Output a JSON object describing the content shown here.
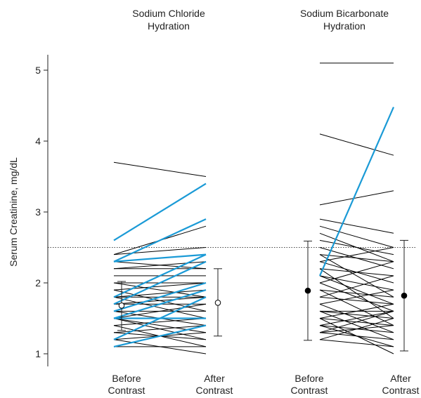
{
  "chart_data": {
    "type": "line",
    "ylabel": "Serum Creatinine, mg/dL",
    "ylim": [
      0.9,
      5.3
    ],
    "yticks": [
      "1",
      "2",
      "3",
      "4",
      "5"
    ],
    "yticks_values": [
      1,
      2,
      3,
      4,
      5
    ],
    "reference_line": 2.5,
    "group_titles": [
      [
        "Sodium Chloride",
        "Hydration"
      ],
      [
        "Sodium Bicarbonate",
        "Hydration"
      ]
    ],
    "category_labels": [
      [
        "Before",
        "Contrast"
      ],
      [
        "After",
        "Contrast"
      ],
      [
        "Before",
        "Contrast"
      ],
      [
        "After",
        "Contrast"
      ]
    ],
    "colors": {
      "line": "#000000",
      "highlight": "#1a9ad6",
      "reference": "#444444"
    },
    "summary": [
      {
        "mean": 1.68,
        "low": 1.33,
        "high": 2.02,
        "marker": "open"
      },
      {
        "mean": 1.72,
        "low": 1.25,
        "high": 2.2,
        "marker": "open"
      },
      {
        "mean": 1.89,
        "low": 1.19,
        "high": 2.59,
        "marker": "filled"
      },
      {
        "mean": 1.82,
        "low": 1.04,
        "high": 2.6,
        "marker": "filled"
      }
    ],
    "groups": [
      {
        "name": "Sodium Chloride Hydration",
        "pairs": [
          [
            3.7,
            3.5,
            0
          ],
          [
            2.6,
            3.4,
            1
          ],
          [
            2.3,
            2.9,
            1
          ],
          [
            2.4,
            2.8,
            0
          ],
          [
            2.4,
            2.5,
            0
          ],
          [
            2.3,
            2.4,
            1
          ],
          [
            2.2,
            2.3,
            0
          ],
          [
            1.8,
            2.4,
            1
          ],
          [
            2.2,
            2.2,
            0
          ],
          [
            2.1,
            2.1,
            0
          ],
          [
            2.0,
            2.0,
            0
          ],
          [
            1.9,
            2.0,
            0
          ],
          [
            2.0,
            1.8,
            0
          ],
          [
            1.8,
            1.9,
            0
          ],
          [
            1.7,
            1.8,
            0
          ],
          [
            1.7,
            1.7,
            0
          ],
          [
            1.6,
            1.6,
            0
          ],
          [
            1.5,
            1.7,
            0
          ],
          [
            1.8,
            1.5,
            0
          ],
          [
            1.9,
            1.6,
            0
          ],
          [
            1.4,
            1.5,
            0
          ],
          [
            1.3,
            1.4,
            0
          ],
          [
            1.5,
            1.3,
            0
          ],
          [
            1.2,
            1.3,
            0
          ],
          [
            1.3,
            1.2,
            0
          ],
          [
            1.4,
            1.1,
            0
          ],
          [
            1.2,
            1.0,
            0
          ],
          [
            1.6,
            1.4,
            0
          ],
          [
            1.5,
            1.2,
            0
          ],
          [
            1.1,
            1.1,
            0
          ],
          [
            1.7,
            2.3,
            1
          ],
          [
            1.6,
            2.0,
            1
          ],
          [
            1.5,
            1.9,
            1
          ],
          [
            1.2,
            1.8,
            1
          ],
          [
            1.1,
            1.4,
            1
          ],
          [
            1.5,
            1.5,
            1
          ],
          [
            2.3,
            2.2,
            0
          ],
          [
            1.8,
            1.8,
            0
          ]
        ]
      },
      {
        "name": "Sodium Bicarbonate Hydration",
        "pairs": [
          [
            5.1,
            5.1,
            0
          ],
          [
            4.1,
            3.8,
            0
          ],
          [
            3.1,
            3.3,
            0
          ],
          [
            2.9,
            2.7,
            0
          ],
          [
            2.8,
            2.5,
            0
          ],
          [
            2.7,
            2.3,
            0
          ],
          [
            2.6,
            2.4,
            0
          ],
          [
            2.5,
            2.2,
            0
          ],
          [
            2.4,
            2.3,
            0
          ],
          [
            2.3,
            2.0,
            0
          ],
          [
            2.2,
            2.1,
            0
          ],
          [
            2.1,
            1.9,
            0
          ],
          [
            2.0,
            2.3,
            0
          ],
          [
            1.9,
            1.8,
            0
          ],
          [
            1.8,
            1.7,
            0
          ],
          [
            1.7,
            1.9,
            0
          ],
          [
            1.6,
            1.6,
            0
          ],
          [
            1.6,
            1.5,
            0
          ],
          [
            1.5,
            1.7,
            0
          ],
          [
            1.5,
            1.4,
            0
          ],
          [
            1.4,
            1.6,
            0
          ],
          [
            1.4,
            1.3,
            0
          ],
          [
            1.3,
            1.2,
            0
          ],
          [
            1.3,
            1.4,
            0
          ],
          [
            1.2,
            1.1,
            0
          ],
          [
            1.2,
            1.5,
            0
          ],
          [
            1.5,
            1.0,
            0
          ],
          [
            1.9,
            1.4,
            0
          ],
          [
            2.0,
            1.6,
            0
          ],
          [
            1.7,
            1.3,
            0
          ],
          [
            2.2,
            1.5,
            0
          ],
          [
            1.8,
            2.1,
            0
          ],
          [
            2.4,
            1.8,
            0
          ],
          [
            1.6,
            1.2,
            0
          ],
          [
            1.4,
            1.1,
            0
          ],
          [
            2.1,
            1.7,
            0
          ],
          [
            1.3,
            1.6,
            0
          ],
          [
            2.3,
            2.5,
            0
          ],
          [
            2.1,
            4.48,
            1
          ]
        ]
      }
    ]
  }
}
